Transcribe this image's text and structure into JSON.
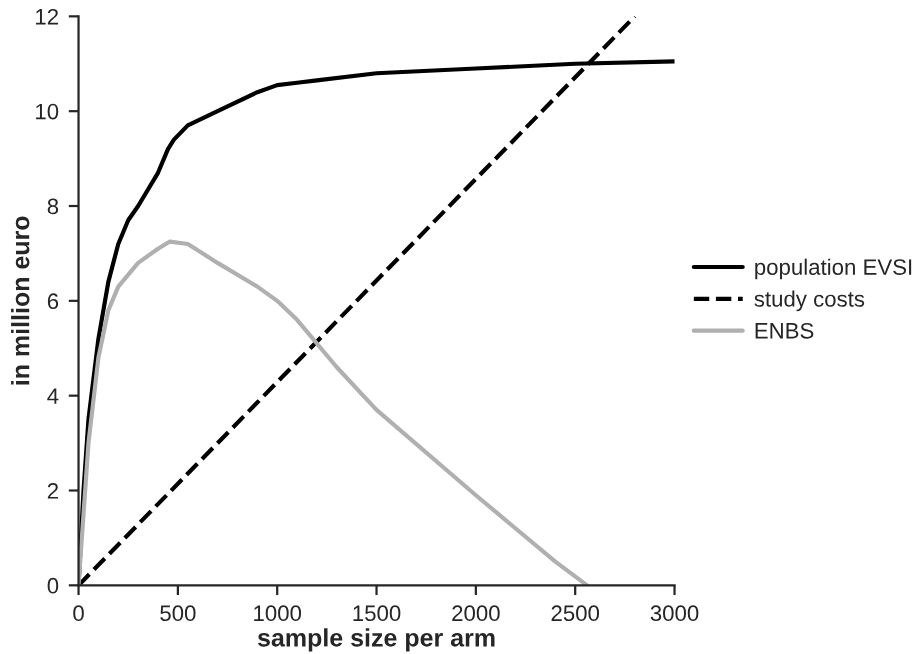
{
  "chart_data": {
    "type": "line",
    "xlabel": "sample size per arm",
    "ylabel": "in million euro",
    "xlim": [
      0,
      3000
    ],
    "xticks": [
      0,
      500,
      1000,
      1500,
      2000,
      2500,
      3000
    ],
    "ylim": [
      0,
      12
    ],
    "yticks": [
      0,
      2,
      4,
      6,
      8,
      10,
      12
    ],
    "grid": false,
    "legend": "right",
    "marker": "none",
    "series": [
      {
        "name": "population EVSI",
        "color": "#000000",
        "line_style": "solid",
        "x": [
          0,
          25,
          50,
          100,
          150,
          200,
          250,
          300,
          400,
          450,
          480,
          550,
          700,
          900,
          1000,
          1100,
          1200,
          1500,
          2000,
          2500,
          3000
        ],
        "values": [
          0,
          2,
          3.5,
          5.2,
          6.4,
          7.2,
          7.7,
          8.0,
          8.7,
          9.2,
          9.4,
          9.7,
          10.0,
          10.4,
          10.55,
          10.6,
          10.65,
          10.8,
          10.9,
          11.0,
          11.05
        ]
      },
      {
        "name": "study costs",
        "color": "#000000",
        "line_style": "dashed",
        "x": [
          0,
          2800
        ],
        "values": [
          0,
          12
        ]
      },
      {
        "name": "ENBS",
        "color": "#b0b0b0",
        "line_style": "solid",
        "x": [
          0,
          50,
          100,
          150,
          200,
          300,
          400,
          460,
          550,
          700,
          900,
          1000,
          1100,
          1300,
          1500,
          2000,
          2400,
          2560
        ],
        "values": [
          0,
          3.0,
          4.8,
          5.8,
          6.3,
          6.8,
          7.1,
          7.25,
          7.2,
          6.8,
          6.3,
          6.0,
          5.6,
          4.6,
          3.7,
          1.9,
          0.5,
          0
        ]
      }
    ]
  }
}
